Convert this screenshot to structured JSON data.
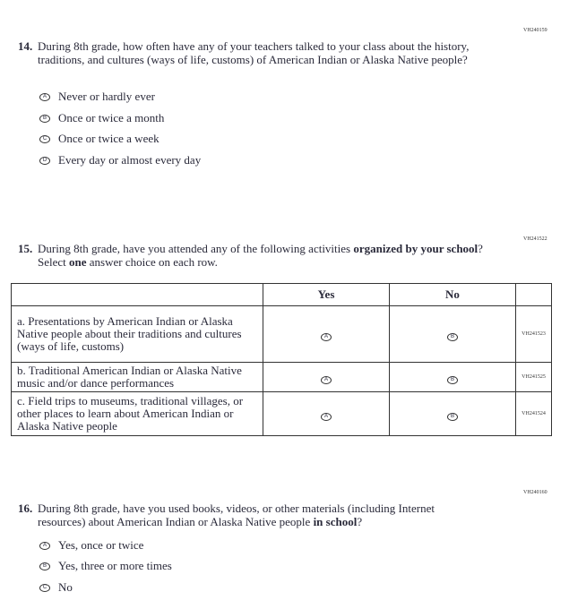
{
  "q14": {
    "code": "VH240159",
    "number": "14.",
    "text": "During 8th grade, how often have any of your teachers talked to your class about the history, traditions, and cultures (ways of life, customs) of American Indian or Alaska Native people?",
    "options": [
      {
        "letter": "A",
        "label": "Never or hardly ever"
      },
      {
        "letter": "B",
        "label": "Once or twice a month"
      },
      {
        "letter": "C",
        "label": "Once or twice a week"
      },
      {
        "letter": "D",
        "label": "Every day or almost every day"
      }
    ]
  },
  "q15": {
    "code": "VH241522",
    "number": "15.",
    "text_pre": "During 8th grade, have you attended any of the following activities ",
    "text_bold": "organized by your school",
    "text_mid": "? Select ",
    "text_bold2": "one",
    "text_post": " answer choice on each row.",
    "headers": [
      "Yes",
      "No"
    ],
    "rows": [
      {
        "label": "a. Presentations by American Indian or Alaska Native people about their traditions and cultures (ways of life, customs)",
        "code": "VH241523"
      },
      {
        "label": "b. Traditional American Indian or Alaska Native music and/or dance performances",
        "code": "VH241525"
      },
      {
        "label": "c. Field trips to museums, traditional villages, or other places to learn about American Indian or Alaska Native people",
        "code": "VH241524"
      }
    ],
    "bubbles": [
      "A",
      "B"
    ]
  },
  "q16": {
    "code": "VH240160",
    "number": "16.",
    "text_pre": "During 8th grade, have you used books, videos, or other materials (including Internet resources) about American Indian or Alaska Native people ",
    "text_bold": "in school",
    "text_post": "?",
    "options": [
      {
        "letter": "A",
        "label": "Yes, once or twice"
      },
      {
        "letter": "B",
        "label": "Yes, three or more times"
      },
      {
        "letter": "C",
        "label": "No"
      }
    ]
  }
}
